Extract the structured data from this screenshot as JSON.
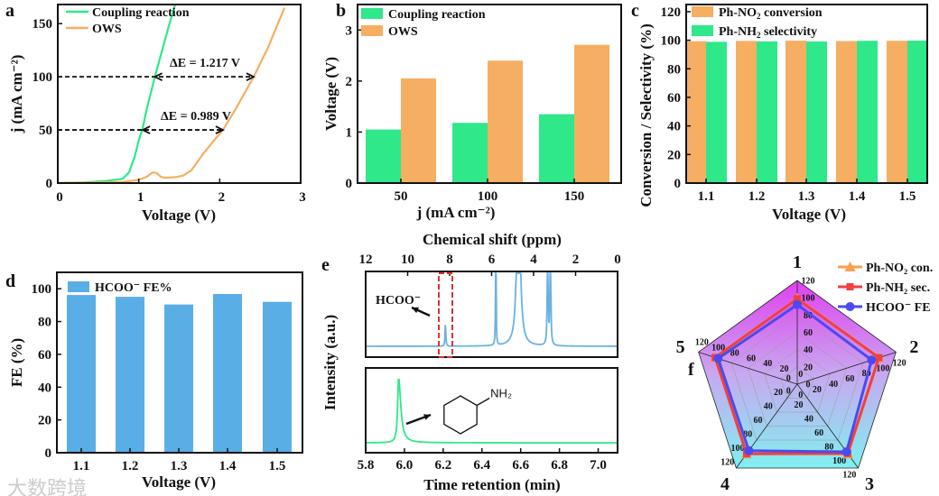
{
  "colors": {
    "green": "#2ee88a",
    "orange": "#f5ae62",
    "blue": "#5aaee6",
    "nmr": "#69b2e2",
    "red": "#e03030",
    "radar_blue": "#4a4af0",
    "radar_red": "#f04040",
    "radar_orange": "#f5a050"
  },
  "watermark": "大数跨境",
  "chart_data": [
    {
      "panel": "a",
      "letter": "a",
      "type": "line",
      "xlabel": "Voltage (V)",
      "ylabel": "j (mA cm⁻²)",
      "xlim": [
        0,
        3
      ],
      "ylim": [
        0,
        168
      ],
      "xticks": [
        0,
        1,
        2,
        3
      ],
      "yticks": [
        0,
        50,
        100,
        150
      ],
      "series": [
        {
          "name": "Coupling reaction",
          "color": "#2ee88a",
          "x": [
            0,
            0.3,
            0.6,
            0.8,
            0.88,
            0.95,
            1.0,
            1.05,
            1.1,
            1.2,
            1.3,
            1.38,
            1.45
          ],
          "y": [
            0,
            0.5,
            2,
            4,
            10,
            25,
            40,
            52,
            70,
            100,
            128,
            150,
            168
          ]
        },
        {
          "name": "OWS",
          "color": "#f5ae62",
          "x": [
            0,
            0.5,
            0.8,
            1.0,
            1.1,
            1.17,
            1.22,
            1.27,
            1.32,
            1.45,
            1.55,
            1.65,
            1.8,
            1.95,
            2.04,
            2.2,
            2.42,
            2.6,
            2.8
          ],
          "y": [
            0,
            0.5,
            1,
            3,
            6,
            10,
            9.5,
            6,
            5,
            5.5,
            7,
            12,
            28,
            42,
            50,
            70,
            100,
            128,
            165
          ]
        }
      ],
      "annotations": [
        {
          "text": "ΔE = 1.217 V",
          "at_j": 100,
          "from_v": 0,
          "to_v": 2.42
        },
        {
          "text": "ΔE = 0.989 V",
          "at_j": 50,
          "from_v": 0,
          "to_v": 2.04
        }
      ]
    },
    {
      "panel": "b",
      "letter": "b",
      "type": "bar",
      "xlabel": "j (mA cm⁻²)",
      "ylabel": "Voltage (V)",
      "ylim": [
        0,
        3.5
      ],
      "yticks": [
        0,
        1,
        2,
        3
      ],
      "categories": [
        "50",
        "100",
        "150"
      ],
      "series": [
        {
          "name": "Coupling reaction",
          "color": "#2ee88a",
          "values": [
            1.05,
            1.18,
            1.35
          ]
        },
        {
          "name": "OWS",
          "color": "#f5ae62",
          "values": [
            2.05,
            2.4,
            2.71
          ]
        }
      ]
    },
    {
      "panel": "c",
      "letter": "c",
      "type": "bar",
      "xlabel": "Voltage (V)",
      "ylabel": "Conversion / Selectivity (%)",
      "ylim": [
        0,
        125
      ],
      "yticks": [
        0,
        20,
        40,
        60,
        80,
        100,
        120
      ],
      "categories": [
        "1.1",
        "1.2",
        "1.3",
        "1.4",
        "1.5"
      ],
      "series": [
        {
          "name": "Ph-NO",
          "sub": "2",
          "name_tail": " conversion",
          "color": "#f5ae62",
          "values": [
            99.3,
            99.5,
            99.7,
            99.4,
            99.6
          ]
        },
        {
          "name": "Ph-NH",
          "sub": "2",
          "name_tail": " selectivity",
          "color": "#2ee88a",
          "values": [
            98.9,
            99.2,
            99.1,
            99.6,
            99.7
          ]
        }
      ]
    },
    {
      "panel": "d",
      "letter": "d",
      "type": "bar",
      "xlabel": "Voltage (V)",
      "ylabel": "FE (%)",
      "ylim": [
        0,
        110
      ],
      "yticks": [
        0,
        20,
        40,
        60,
        80,
        100
      ],
      "categories": [
        "1.1",
        "1.2",
        "1.3",
        "1.4",
        "1.5"
      ],
      "series": [
        {
          "name": "HCOO⁻ FE%",
          "color": "#5aaee6",
          "values": [
            96.2,
            95.1,
            90.4,
            96.8,
            92.0
          ]
        }
      ]
    },
    {
      "panel": "e",
      "letter": "e",
      "type": "line",
      "top_xlabel": "Chemical shift (ppm)",
      "xlabel": "Time retention (min)",
      "ylabel": "Intensity (a.u.)",
      "top_xlim": [
        12,
        0
      ],
      "top_xticks": [
        12,
        10,
        8,
        6,
        4,
        2,
        0
      ],
      "xlim": [
        5.8,
        7.1
      ],
      "xticks": [
        "5.8",
        "6.0",
        "6.2",
        "6.4",
        "6.6",
        "6.8",
        "7.0"
      ],
      "nmr_peaks": [
        {
          "ppm": 8.2,
          "h": 0.33,
          "w": 0.02
        },
        {
          "ppm": 5.8,
          "h": 3,
          "w": 0.01
        },
        {
          "ppm": 4.72,
          "h": 3,
          "w": 0.08
        },
        {
          "ppm": 3.33,
          "h": 3,
          "w": 0.015
        },
        {
          "ppm": 3.2,
          "h": 3,
          "w": 0.015
        }
      ],
      "gc_peaks": [
        {
          "t": 5.97,
          "h": 1,
          "w": 0.006
        }
      ],
      "labels": {
        "hcoo": "HCOO⁻",
        "nh2": "NH₂"
      }
    },
    {
      "panel": "f",
      "letter": "f",
      "type": "radar",
      "axes": [
        "1",
        "2",
        "3",
        "4",
        "5"
      ],
      "rlim": [
        0,
        120
      ],
      "rticks": [
        0,
        20,
        40,
        60,
        80,
        100,
        120
      ],
      "series": [
        {
          "name": "Ph-NO₂ con.",
          "color": "#f5a050",
          "marker": "triangle",
          "values": [
            99.3,
            99.5,
            99.7,
            99.4,
            99.6
          ]
        },
        {
          "name": "Ph-NH₂ sec.",
          "color": "#f04040",
          "marker": "square",
          "values": [
            98.9,
            99.2,
            99.1,
            99.6,
            99.7
          ]
        },
        {
          "name": "HCOO⁻ FE",
          "color": "#4a4af0",
          "marker": "circle",
          "values": [
            92.0,
            90.4,
            96.8,
            95.1,
            96.2
          ]
        }
      ]
    }
  ]
}
